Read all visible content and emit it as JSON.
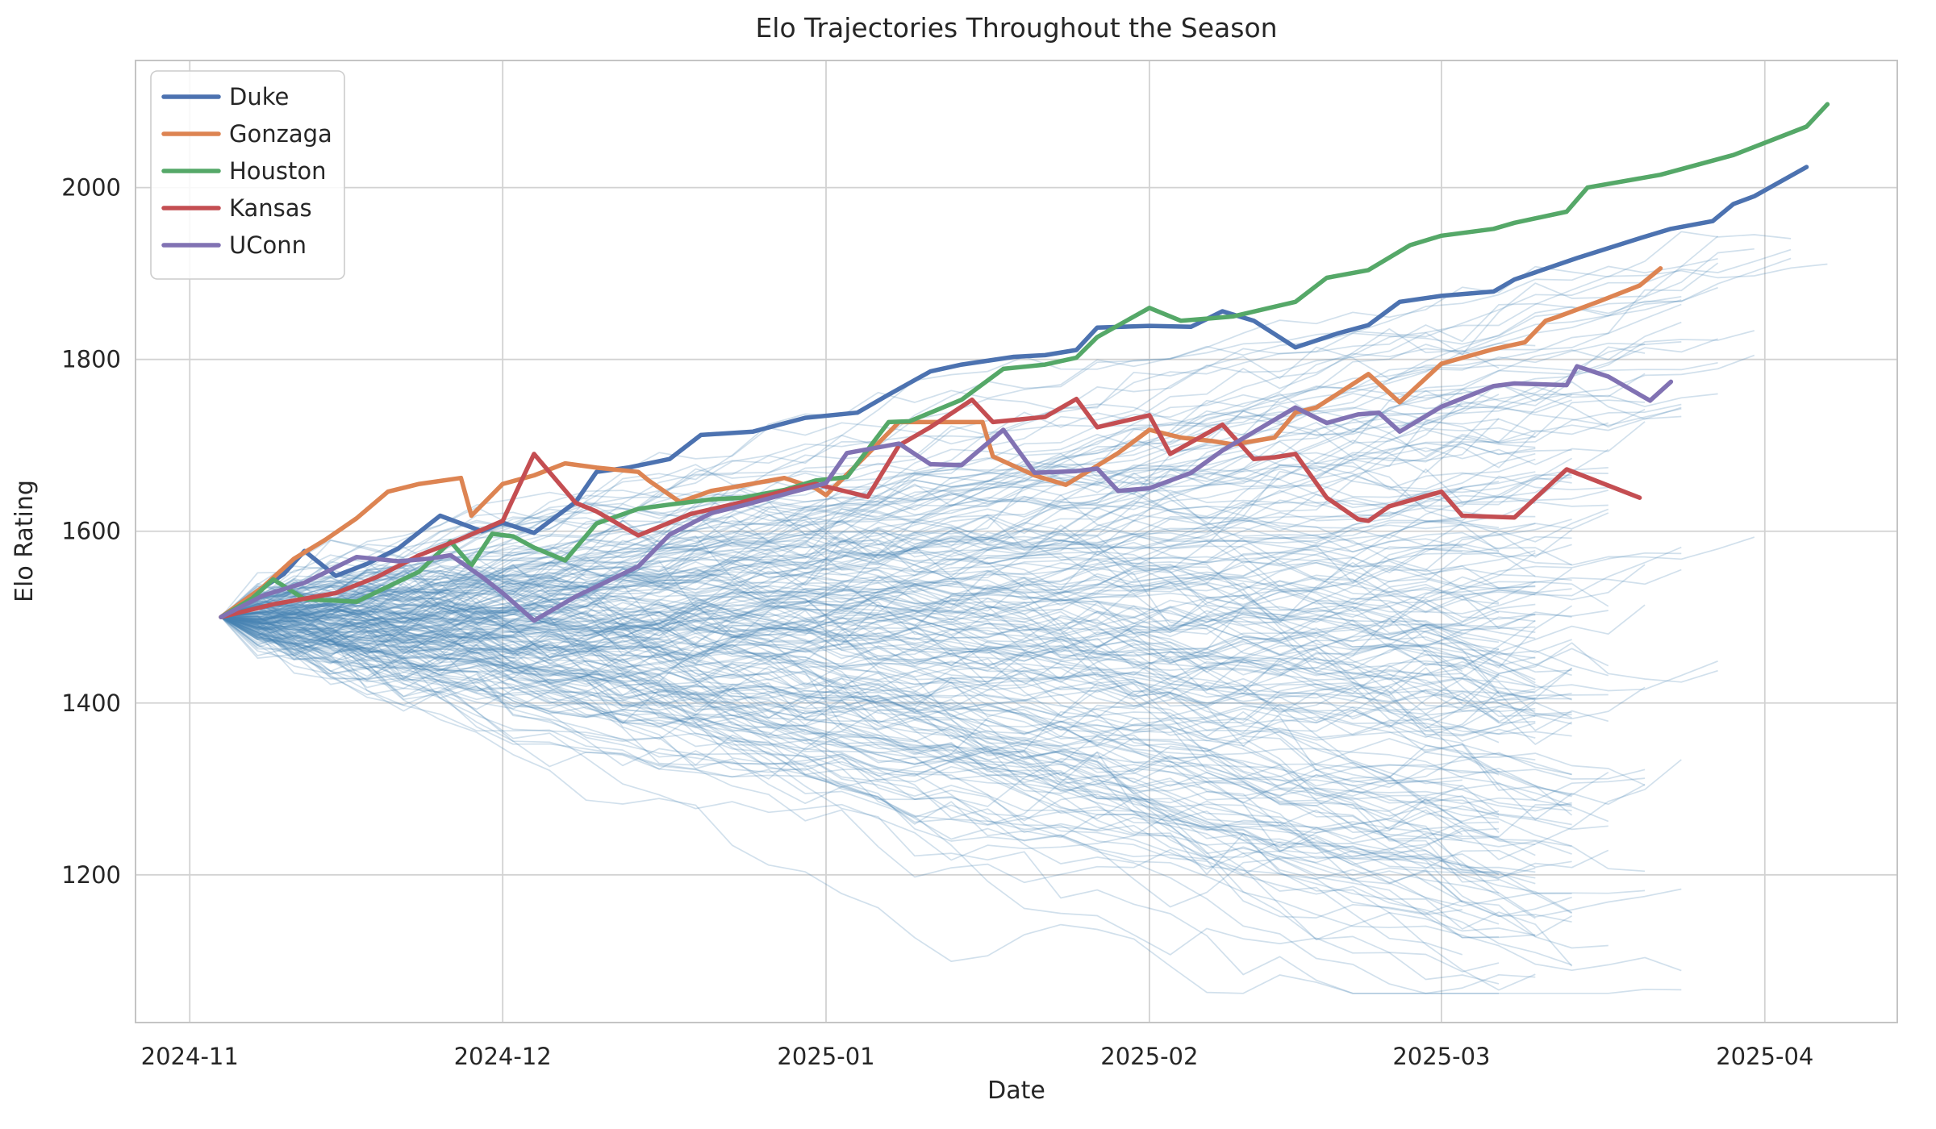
{
  "title": "Elo Trajectories Throughout the Season",
  "axes": {
    "xlabel": "Date",
    "ylabel": "Elo Rating"
  },
  "chart_data": {
    "type": "line",
    "title": "Elo Trajectories Throughout the Season",
    "xlabel": "Date",
    "ylabel": "Elo Rating",
    "x_unit": "days since 2024-11-01",
    "x_ticks": [
      {
        "day": 0,
        "label": "2024-11"
      },
      {
        "day": 30,
        "label": "2024-12"
      },
      {
        "day": 61,
        "label": "2025-01"
      },
      {
        "day": 92,
        "label": "2025-02"
      },
      {
        "day": 120,
        "label": "2025-03"
      },
      {
        "day": 151,
        "label": "2025-04"
      }
    ],
    "y_ticks": [
      1200,
      1400,
      1600,
      1800,
      2000
    ],
    "xlim": [
      -5.2,
      163.7
    ],
    "ylim": [
      1028,
      2148
    ],
    "grid": true,
    "grid_color": "#d2d2d2",
    "spine_color": "#c4c4c4",
    "legend_position": "upper left",
    "series": [
      {
        "name": "Duke",
        "color": "#4c72b0",
        "points": [
          [
            3,
            1500
          ],
          [
            6,
            1526
          ],
          [
            9,
            1550
          ],
          [
            11,
            1577
          ],
          [
            14,
            1548
          ],
          [
            17,
            1562
          ],
          [
            20,
            1580
          ],
          [
            24,
            1618
          ],
          [
            28,
            1600
          ],
          [
            30,
            1610
          ],
          [
            33,
            1598
          ],
          [
            37,
            1634
          ],
          [
            39,
            1669
          ],
          [
            42,
            1674
          ],
          [
            46,
            1684
          ],
          [
            49,
            1712
          ],
          [
            54,
            1716
          ],
          [
            59,
            1732
          ],
          [
            64,
            1738
          ],
          [
            67,
            1759
          ],
          [
            71,
            1786
          ],
          [
            74,
            1794
          ],
          [
            79,
            1803
          ],
          [
            82,
            1805
          ],
          [
            85,
            1811
          ],
          [
            87,
            1837
          ],
          [
            92,
            1839
          ],
          [
            96,
            1838
          ],
          [
            99,
            1856
          ],
          [
            102,
            1845
          ],
          [
            106,
            1814
          ],
          [
            110,
            1830
          ],
          [
            113,
            1840
          ],
          [
            116,
            1867
          ],
          [
            120,
            1874
          ],
          [
            125,
            1879
          ],
          [
            127,
            1893
          ],
          [
            133,
            1918
          ],
          [
            139,
            1941
          ],
          [
            142,
            1952
          ],
          [
            146,
            1961
          ],
          [
            148,
            1981
          ],
          [
            150,
            1990
          ],
          [
            155,
            2024
          ]
        ]
      },
      {
        "name": "Gonzaga",
        "color": "#dd8452",
        "points": [
          [
            3,
            1500
          ],
          [
            7,
            1535
          ],
          [
            10,
            1568
          ],
          [
            13,
            1590
          ],
          [
            16,
            1615
          ],
          [
            19,
            1646
          ],
          [
            22,
            1655
          ],
          [
            26,
            1662
          ],
          [
            27,
            1618
          ],
          [
            30,
            1655
          ],
          [
            33,
            1665
          ],
          [
            36,
            1679
          ],
          [
            39,
            1674
          ],
          [
            43,
            1669
          ],
          [
            44,
            1659
          ],
          [
            47,
            1634
          ],
          [
            50,
            1647
          ],
          [
            52,
            1651
          ],
          [
            57,
            1662
          ],
          [
            60,
            1650
          ],
          [
            61,
            1642
          ],
          [
            65,
            1690
          ],
          [
            68,
            1727
          ],
          [
            76,
            1727
          ],
          [
            77,
            1687
          ],
          [
            81,
            1665
          ],
          [
            84,
            1654
          ],
          [
            89,
            1691
          ],
          [
            92,
            1718
          ],
          [
            95,
            1709
          ],
          [
            98,
            1705
          ],
          [
            100,
            1701
          ],
          [
            104,
            1709
          ],
          [
            106,
            1738
          ],
          [
            108,
            1744
          ],
          [
            113,
            1783
          ],
          [
            116,
            1750
          ],
          [
            120,
            1795
          ],
          [
            125,
            1812
          ],
          [
            128,
            1820
          ],
          [
            130,
            1845
          ],
          [
            131,
            1849
          ],
          [
            135,
            1867
          ],
          [
            139,
            1886
          ],
          [
            141,
            1906
          ]
        ]
      },
      {
        "name": "Houston",
        "color": "#55a868",
        "points": [
          [
            3,
            1500
          ],
          [
            6,
            1522
          ],
          [
            8,
            1544
          ],
          [
            11,
            1521
          ],
          [
            16,
            1518
          ],
          [
            22,
            1553
          ],
          [
            25,
            1588
          ],
          [
            27,
            1560
          ],
          [
            29,
            1597
          ],
          [
            31,
            1594
          ],
          [
            33,
            1581
          ],
          [
            36,
            1566
          ],
          [
            39,
            1609
          ],
          [
            43,
            1626
          ],
          [
            46,
            1631
          ],
          [
            50,
            1637
          ],
          [
            53,
            1639
          ],
          [
            57,
            1648
          ],
          [
            60,
            1659
          ],
          [
            63,
            1663
          ],
          [
            67,
            1727
          ],
          [
            69,
            1728
          ],
          [
            74,
            1753
          ],
          [
            78,
            1789
          ],
          [
            82,
            1794
          ],
          [
            85,
            1802
          ],
          [
            87,
            1826
          ],
          [
            92,
            1860
          ],
          [
            95,
            1845
          ],
          [
            98,
            1848
          ],
          [
            100,
            1850
          ],
          [
            106,
            1867
          ],
          [
            109,
            1895
          ],
          [
            113,
            1904
          ],
          [
            117,
            1933
          ],
          [
            120,
            1944
          ],
          [
            125,
            1952
          ],
          [
            127,
            1959
          ],
          [
            132,
            1972
          ],
          [
            134,
            2000
          ],
          [
            141,
            2015
          ],
          [
            148,
            2038
          ],
          [
            155,
            2071
          ],
          [
            157,
            2097
          ]
        ]
      },
      {
        "name": "Kansas",
        "color": "#c44e52",
        "points": [
          [
            3,
            1500
          ],
          [
            8,
            1515
          ],
          [
            14,
            1528
          ],
          [
            18,
            1547
          ],
          [
            22,
            1572
          ],
          [
            26,
            1591
          ],
          [
            30,
            1612
          ],
          [
            33,
            1690
          ],
          [
            37,
            1633
          ],
          [
            39,
            1623
          ],
          [
            43,
            1595
          ],
          [
            48,
            1620
          ],
          [
            53,
            1634
          ],
          [
            58,
            1650
          ],
          [
            60,
            1655
          ],
          [
            65,
            1640
          ],
          [
            68,
            1700
          ],
          [
            71,
            1721
          ],
          [
            75,
            1753
          ],
          [
            77,
            1727
          ],
          [
            82,
            1733
          ],
          [
            85,
            1754
          ],
          [
            87,
            1721
          ],
          [
            92,
            1735
          ],
          [
            94,
            1690
          ],
          [
            99,
            1724
          ],
          [
            102,
            1684
          ],
          [
            104,
            1686
          ],
          [
            106,
            1690
          ],
          [
            109,
            1639
          ],
          [
            112,
            1614
          ],
          [
            113,
            1612
          ],
          [
            115,
            1629
          ],
          [
            120,
            1646
          ],
          [
            122,
            1618
          ],
          [
            127,
            1616
          ],
          [
            132,
            1672
          ],
          [
            139,
            1639
          ]
        ]
      },
      {
        "name": "UConn",
        "color": "#8172b3",
        "points": [
          [
            3,
            1500
          ],
          [
            7,
            1525
          ],
          [
            11,
            1540
          ],
          [
            16,
            1570
          ],
          [
            20,
            1565
          ],
          [
            23,
            1568
          ],
          [
            25,
            1572
          ],
          [
            28,
            1547
          ],
          [
            30,
            1528
          ],
          [
            33,
            1496
          ],
          [
            37,
            1524
          ],
          [
            43,
            1559
          ],
          [
            46,
            1596
          ],
          [
            50,
            1621
          ],
          [
            53,
            1630
          ],
          [
            57,
            1643
          ],
          [
            61,
            1656
          ],
          [
            63,
            1691
          ],
          [
            68,
            1702
          ],
          [
            71,
            1678
          ],
          [
            74,
            1677
          ],
          [
            78,
            1718
          ],
          [
            81,
            1668
          ],
          [
            85,
            1670
          ],
          [
            87,
            1673
          ],
          [
            89,
            1647
          ],
          [
            92,
            1650
          ],
          [
            96,
            1668
          ],
          [
            99,
            1694
          ],
          [
            106,
            1744
          ],
          [
            109,
            1726
          ],
          [
            112,
            1736
          ],
          [
            114,
            1738
          ],
          [
            116,
            1716
          ],
          [
            120,
            1745
          ],
          [
            125,
            1769
          ],
          [
            127,
            1772
          ],
          [
            132,
            1770
          ],
          [
            133,
            1792
          ],
          [
            136,
            1780
          ],
          [
            140,
            1752
          ],
          [
            142,
            1774
          ]
        ]
      }
    ],
    "background_ensemble": {
      "description": "Approximately 230 unlabeled team Elo trajectories drawn translucent steel-blue; all start at Elo 1500 on 2024-11-04 and fan out to roughly 1150-1970 by March-April, most ending mid-March with tournament teams extending into April.",
      "count": 230,
      "color": "#4682b4",
      "opacity": 0.25,
      "line_width": 1.7,
      "start_day": 3,
      "start_elo": 1500,
      "elo_min": 1062,
      "elo_max": 2130,
      "typical_end_day": [
        124,
        137
      ],
      "extended_end_day_max": 158,
      "seed": 20250407
    }
  }
}
